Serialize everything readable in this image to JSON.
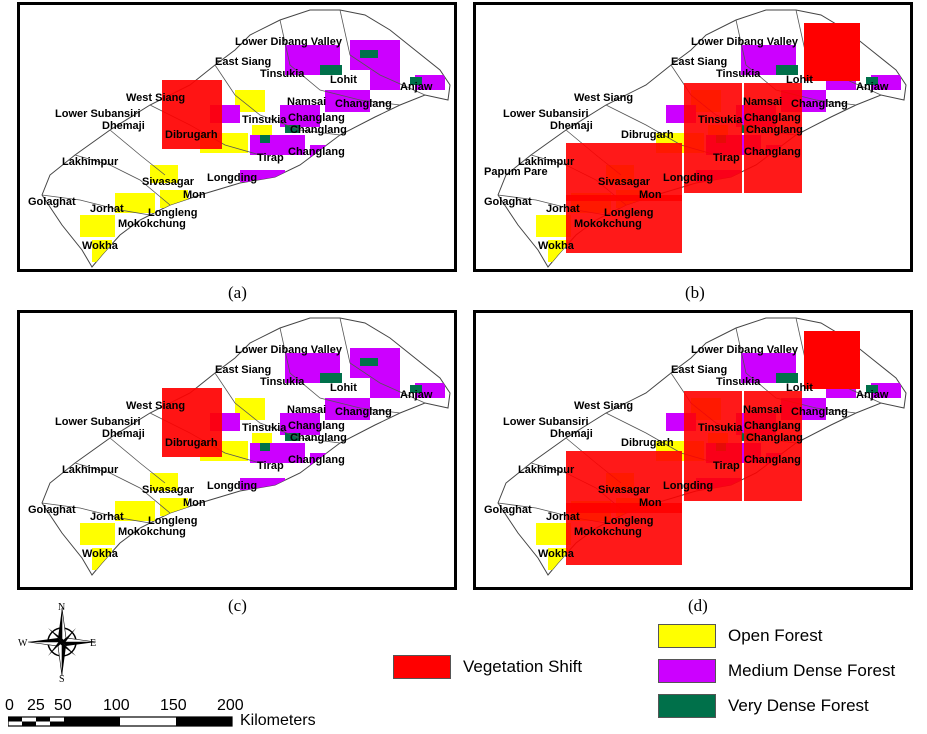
{
  "panels": [
    {
      "id": "a",
      "label": "(a)",
      "shift": [
        [
          0,
          0,
          2,
          2
        ]
      ],
      "extra": false
    },
    {
      "id": "b",
      "label": "(b)",
      "shift": [
        [
          1,
          0,
          2,
          3
        ],
        [
          2,
          1,
          3,
          2
        ]
      ],
      "extra": true
    },
    {
      "id": "c",
      "label": "(c)",
      "shift": [
        [
          0,
          0,
          2,
          2
        ]
      ],
      "extra": false
    },
    {
      "id": "d",
      "label": "(d)",
      "shift": [
        [
          1,
          0,
          2,
          3
        ],
        [
          2,
          1,
          3,
          2
        ]
      ],
      "extra": true
    }
  ],
  "districts": [
    "Lower Dibang Valley",
    "East Siang",
    "Tinsukia",
    "Lohit",
    "Anjaw",
    "West Siang",
    "Lower Subansiri",
    "Dhemaji",
    "Namsai",
    "Changlang",
    "Dibrugarh",
    "Tinsukia",
    "Changlang",
    "Changlang",
    "Lakhimpur",
    "Tirap",
    "Changlang",
    "Sivasagar",
    "Longding",
    "Mon",
    "Golaghat",
    "Jorhat",
    "Longleng",
    "Mokokchung",
    "Wokha",
    "Papum Pare"
  ],
  "legend": {
    "vegetation_shift": {
      "label": "Vegetation Shift",
      "color": "#ff0000"
    },
    "open_forest": {
      "label": "Open Forest",
      "color": "#ffff00"
    },
    "medium_dense_forest": {
      "label": "Medium Dense Forest",
      "color": "#cc00ff"
    },
    "very_dense_forest": {
      "label": "Very Dense Forest",
      "color": "#00704a"
    }
  },
  "compass": {
    "n": "N",
    "s": "S",
    "e": "E",
    "w": "W"
  },
  "scale": {
    "ticks": [
      "0",
      "25",
      "50",
      "100",
      "150",
      "200"
    ],
    "unit": "Kilometers"
  }
}
